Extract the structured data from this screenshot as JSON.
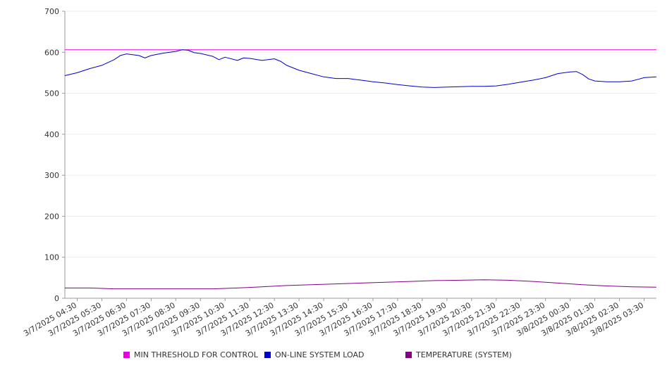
{
  "chart_data": {
    "type": "line",
    "ylim": [
      0,
      700
    ],
    "yticks": [
      0,
      100,
      200,
      300,
      400,
      500,
      600,
      700
    ],
    "grid": true,
    "legend_position": "bottom",
    "x_tick_labels": [
      "3/7/2025 04:30",
      "3/7/2025 05:30",
      "3/7/2025 06:30",
      "3/7/2025 07:30",
      "3/7/2025 08:30",
      "3/7/2025 09:30",
      "3/7/2025 10:30",
      "3/7/2025 11:30",
      "3/7/2025 12:30",
      "3/7/2025 13:30",
      "3/7/2025 14:30",
      "3/7/2025 15:30",
      "3/7/2025 16:30",
      "3/7/2025 17:30",
      "3/7/2025 18:30",
      "3/7/2025 19:30",
      "3/7/2025 20:30",
      "3/7/2025 21:30",
      "3/7/2025 22:30",
      "3/7/2025 23:30",
      "3/8/2025 00:30",
      "3/8/2025 01:30",
      "3/8/2025 02:30",
      "3/8/2025 03:30"
    ],
    "x_range": [
      "3/7/2025 04:00",
      "3/8/2025 04:00"
    ],
    "series": [
      {
        "name": "MIN THRESHOLD FOR CONTROL",
        "color": "#e600e6",
        "points": [
          [
            "3/7/2025 04:00",
            606
          ],
          [
            "3/8/2025 04:00",
            606
          ]
        ]
      },
      {
        "name": "ON-LINE SYSTEM LOAD",
        "color": "#0000cc",
        "points": [
          [
            "3/7/2025 04:00",
            543
          ],
          [
            "3/7/2025 04:30",
            550
          ],
          [
            "3/7/2025 05:00",
            560
          ],
          [
            "3/7/2025 05:30",
            568
          ],
          [
            "3/7/2025 06:00",
            582
          ],
          [
            "3/7/2025 06:15",
            592
          ],
          [
            "3/7/2025 06:30",
            596
          ],
          [
            "3/7/2025 07:00",
            592
          ],
          [
            "3/7/2025 07:15",
            586
          ],
          [
            "3/7/2025 07:30",
            592
          ],
          [
            "3/7/2025 08:00",
            598
          ],
          [
            "3/7/2025 08:30",
            602
          ],
          [
            "3/7/2025 08:45",
            606
          ],
          [
            "3/7/2025 09:00",
            605
          ],
          [
            "3/7/2025 09:15",
            599
          ],
          [
            "3/7/2025 09:30",
            597
          ],
          [
            "3/7/2025 10:00",
            590
          ],
          [
            "3/7/2025 10:15",
            582
          ],
          [
            "3/7/2025 10:30",
            588
          ],
          [
            "3/7/2025 11:00",
            580
          ],
          [
            "3/7/2025 11:15",
            586
          ],
          [
            "3/7/2025 11:30",
            585
          ],
          [
            "3/7/2025 12:00",
            580
          ],
          [
            "3/7/2025 12:30",
            584
          ],
          [
            "3/7/2025 12:45",
            578
          ],
          [
            "3/7/2025 13:00",
            568
          ],
          [
            "3/7/2025 13:30",
            556
          ],
          [
            "3/7/2025 14:00",
            548
          ],
          [
            "3/7/2025 14:30",
            540
          ],
          [
            "3/7/2025 15:00",
            536
          ],
          [
            "3/7/2025 15:30",
            536
          ],
          [
            "3/7/2025 16:00",
            532
          ],
          [
            "3/7/2025 16:30",
            528
          ],
          [
            "3/7/2025 17:00",
            525
          ],
          [
            "3/7/2025 17:30",
            521
          ],
          [
            "3/7/2025 18:00",
            518
          ],
          [
            "3/7/2025 18:30",
            515
          ],
          [
            "3/7/2025 19:00",
            514
          ],
          [
            "3/7/2025 19:30",
            515
          ],
          [
            "3/7/2025 20:00",
            516
          ],
          [
            "3/7/2025 20:30",
            517
          ],
          [
            "3/7/2025 21:00",
            517
          ],
          [
            "3/7/2025 21:30",
            518
          ],
          [
            "3/7/2025 22:00",
            522
          ],
          [
            "3/7/2025 22:30",
            527
          ],
          [
            "3/7/2025 23:00",
            532
          ],
          [
            "3/7/2025 23:30",
            538
          ],
          [
            "3/8/2025 00:00",
            548
          ],
          [
            "3/8/2025 00:30",
            552
          ],
          [
            "3/8/2025 00:45",
            553
          ],
          [
            "3/8/2025 01:00",
            546
          ],
          [
            "3/8/2025 01:15",
            535
          ],
          [
            "3/8/2025 01:30",
            530
          ],
          [
            "3/8/2025 02:00",
            528
          ],
          [
            "3/8/2025 02:30",
            528
          ],
          [
            "3/8/2025 03:00",
            530
          ],
          [
            "3/8/2025 03:15",
            534
          ],
          [
            "3/8/2025 03:30",
            538
          ],
          [
            "3/8/2025 04:00",
            540
          ]
        ]
      },
      {
        "name": "TEMPERATURE (SYSTEM)",
        "color": "#800080",
        "points": [
          [
            "3/7/2025 04:00",
            25
          ],
          [
            "3/7/2025 05:00",
            25
          ],
          [
            "3/7/2025 06:00",
            23
          ],
          [
            "3/7/2025 07:00",
            23
          ],
          [
            "3/7/2025 08:00",
            23
          ],
          [
            "3/7/2025 09:00",
            23
          ],
          [
            "3/7/2025 10:00",
            23
          ],
          [
            "3/7/2025 11:00",
            25
          ],
          [
            "3/7/2025 12:00",
            28
          ],
          [
            "3/7/2025 13:00",
            31
          ],
          [
            "3/7/2025 14:00",
            33
          ],
          [
            "3/7/2025 15:00",
            35
          ],
          [
            "3/7/2025 16:00",
            37
          ],
          [
            "3/7/2025 17:00",
            39
          ],
          [
            "3/7/2025 18:00",
            41
          ],
          [
            "3/7/2025 19:00",
            43
          ],
          [
            "3/7/2025 20:00",
            44
          ],
          [
            "3/7/2025 21:00",
            45
          ],
          [
            "3/7/2025 22:00",
            44
          ],
          [
            "3/7/2025 23:00",
            41
          ],
          [
            "3/8/2025 00:00",
            37
          ],
          [
            "3/8/2025 01:00",
            33
          ],
          [
            "3/8/2025 02:00",
            30
          ],
          [
            "3/8/2025 03:00",
            28
          ],
          [
            "3/8/2025 04:00",
            27
          ]
        ]
      }
    ]
  }
}
